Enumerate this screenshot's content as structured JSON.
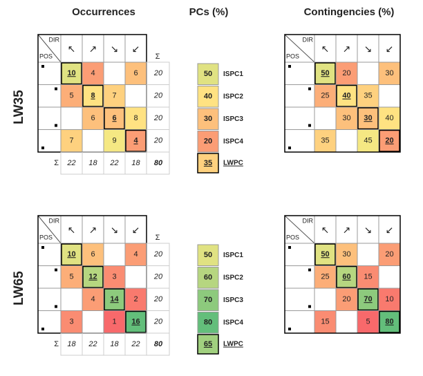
{
  "headers": {
    "occurrences": "Occurrences",
    "pcs": "PCs (%)",
    "contingencies": "Contingencies (%)"
  },
  "labels": {
    "dir": "DIR",
    "pos": "POS",
    "sigma": "Σ",
    "directions": [
      "↖",
      "↗",
      "↘",
      "↙"
    ]
  },
  "color_scale": [
    "#f8696b",
    "#ffeb84",
    "#63be7b"
  ],
  "total_color": "#e02020",
  "blocks": [
    {
      "name": "LW35",
      "occurrences": [
        [
          10,
          4,
          null,
          6
        ],
        [
          5,
          8,
          7,
          null
        ],
        [
          null,
          6,
          6,
          8
        ],
        [
          7,
          null,
          9,
          4
        ]
      ],
      "row_sums": [
        20,
        20,
        20,
        20
      ],
      "col_sums": [
        22,
        18,
        22,
        18
      ],
      "total": 80,
      "pcs": [
        {
          "value": 50,
          "label": "ISPC1"
        },
        {
          "value": 40,
          "label": "ISPC2"
        },
        {
          "value": 30,
          "label": "ISPC3"
        },
        {
          "value": 20,
          "label": "ISPC4"
        },
        {
          "value": 35,
          "label": "LWPC"
        }
      ],
      "contingencies": [
        [
          50,
          20,
          null,
          30
        ],
        [
          25,
          40,
          35,
          null
        ],
        [
          null,
          30,
          30,
          40
        ],
        [
          35,
          null,
          45,
          20
        ]
      ]
    },
    {
      "name": "LW65",
      "occurrences": [
        [
          10,
          6,
          null,
          4
        ],
        [
          5,
          12,
          3,
          null
        ],
        [
          null,
          4,
          14,
          2
        ],
        [
          3,
          null,
          1,
          16
        ]
      ],
      "row_sums": [
        20,
        20,
        20,
        20
      ],
      "col_sums": [
        18,
        22,
        18,
        22
      ],
      "total": 80,
      "pcs": [
        {
          "value": 50,
          "label": "ISPC1"
        },
        {
          "value": 60,
          "label": "ISPC2"
        },
        {
          "value": 70,
          "label": "ISPC3"
        },
        {
          "value": 80,
          "label": "ISPC4"
        },
        {
          "value": 65,
          "label": "LWPC"
        }
      ],
      "contingencies": [
        [
          50,
          30,
          null,
          20
        ],
        [
          25,
          60,
          15,
          null
        ],
        [
          null,
          20,
          70,
          10
        ],
        [
          15,
          null,
          5,
          80
        ]
      ]
    }
  ]
}
